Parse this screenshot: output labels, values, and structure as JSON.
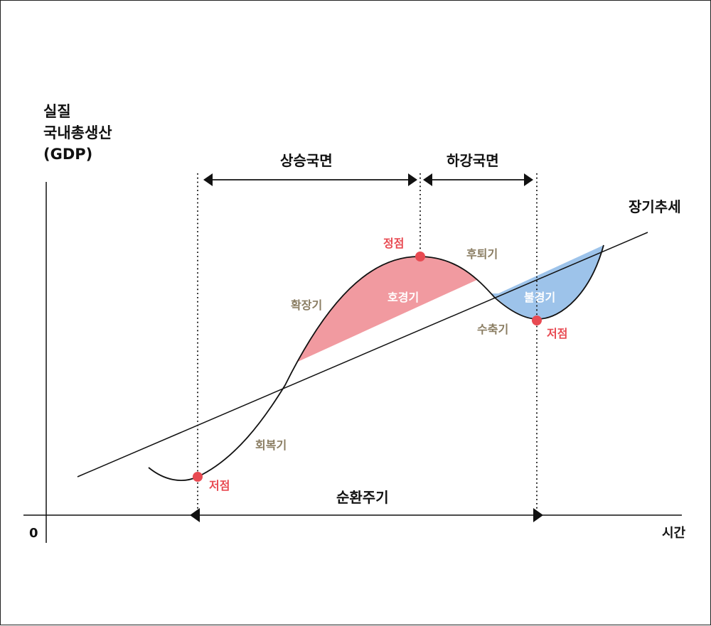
{
  "y_axis_label": {
    "line1": "실질",
    "line2": "국내총생산",
    "line3": "(GDP)"
  },
  "x_axis_label": "시간",
  "origin_label": "0",
  "trend_label": "장기추세",
  "phases": {
    "rising": "상승국면",
    "falling": "하강국면"
  },
  "cycle_label": "순환주기",
  "stages": {
    "recovery": "회복기",
    "expansion": "확장기",
    "retreat": "후퇴기",
    "contraction": "수축기"
  },
  "points": {
    "trough_start": "저점",
    "peak": "정점",
    "trough_end": "저점"
  },
  "regions": {
    "boom": "호경기",
    "recession": "불경기"
  },
  "colors": {
    "boom_fill": "#f19aa0",
    "recession_fill": "#9dc3ea",
    "point": "#e84a52",
    "stage_text": "#8a7d62"
  }
}
